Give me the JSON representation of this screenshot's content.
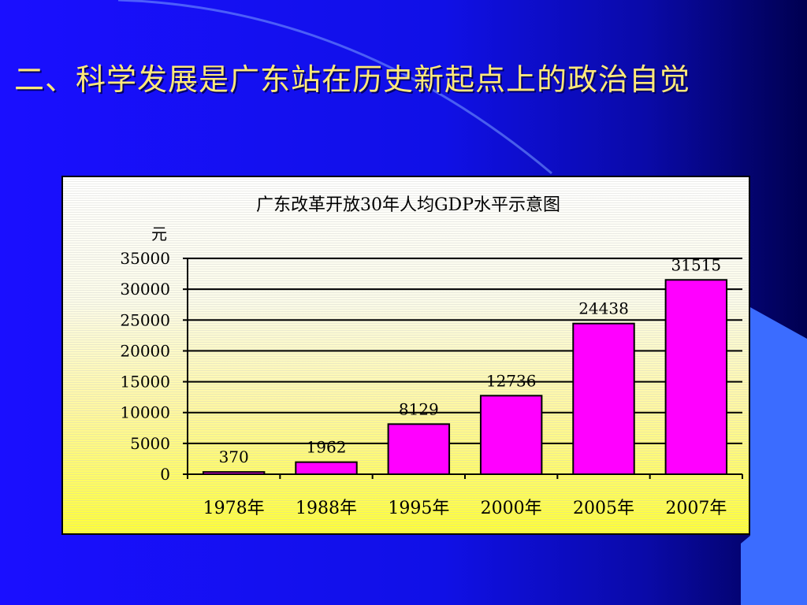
{
  "slide": {
    "title": "二、科学发展是广东站在历史新起点上的政治自觉",
    "title_color": "#ffe97a",
    "background_colors": [
      "#1a0fff",
      "#0a0aa8",
      "#000050"
    ],
    "accent_color": "#3366ff"
  },
  "chart_data": {
    "type": "bar",
    "title": "广东改革开放30年人均GDP水平示意图",
    "ylabel": "元",
    "xlabel": "",
    "categories": [
      "1978年",
      "1988年",
      "1995年",
      "2000年",
      "2005年",
      "2007年"
    ],
    "values": [
      370,
      1962,
      8129,
      12736,
      24438,
      31515
    ],
    "data_labels": [
      "370",
      "1962",
      "8129",
      "12736",
      "24438",
      "31515"
    ],
    "ylim": [
      0,
      35000
    ],
    "yticks": [
      0,
      5000,
      10000,
      15000,
      20000,
      25000,
      30000,
      35000
    ],
    "ytick_labels": [
      "0",
      "5000",
      "10000",
      "15000",
      "20000",
      "25000",
      "30000",
      "35000"
    ],
    "grid": true,
    "bar_color": "#ff00ff",
    "legend": "none"
  }
}
